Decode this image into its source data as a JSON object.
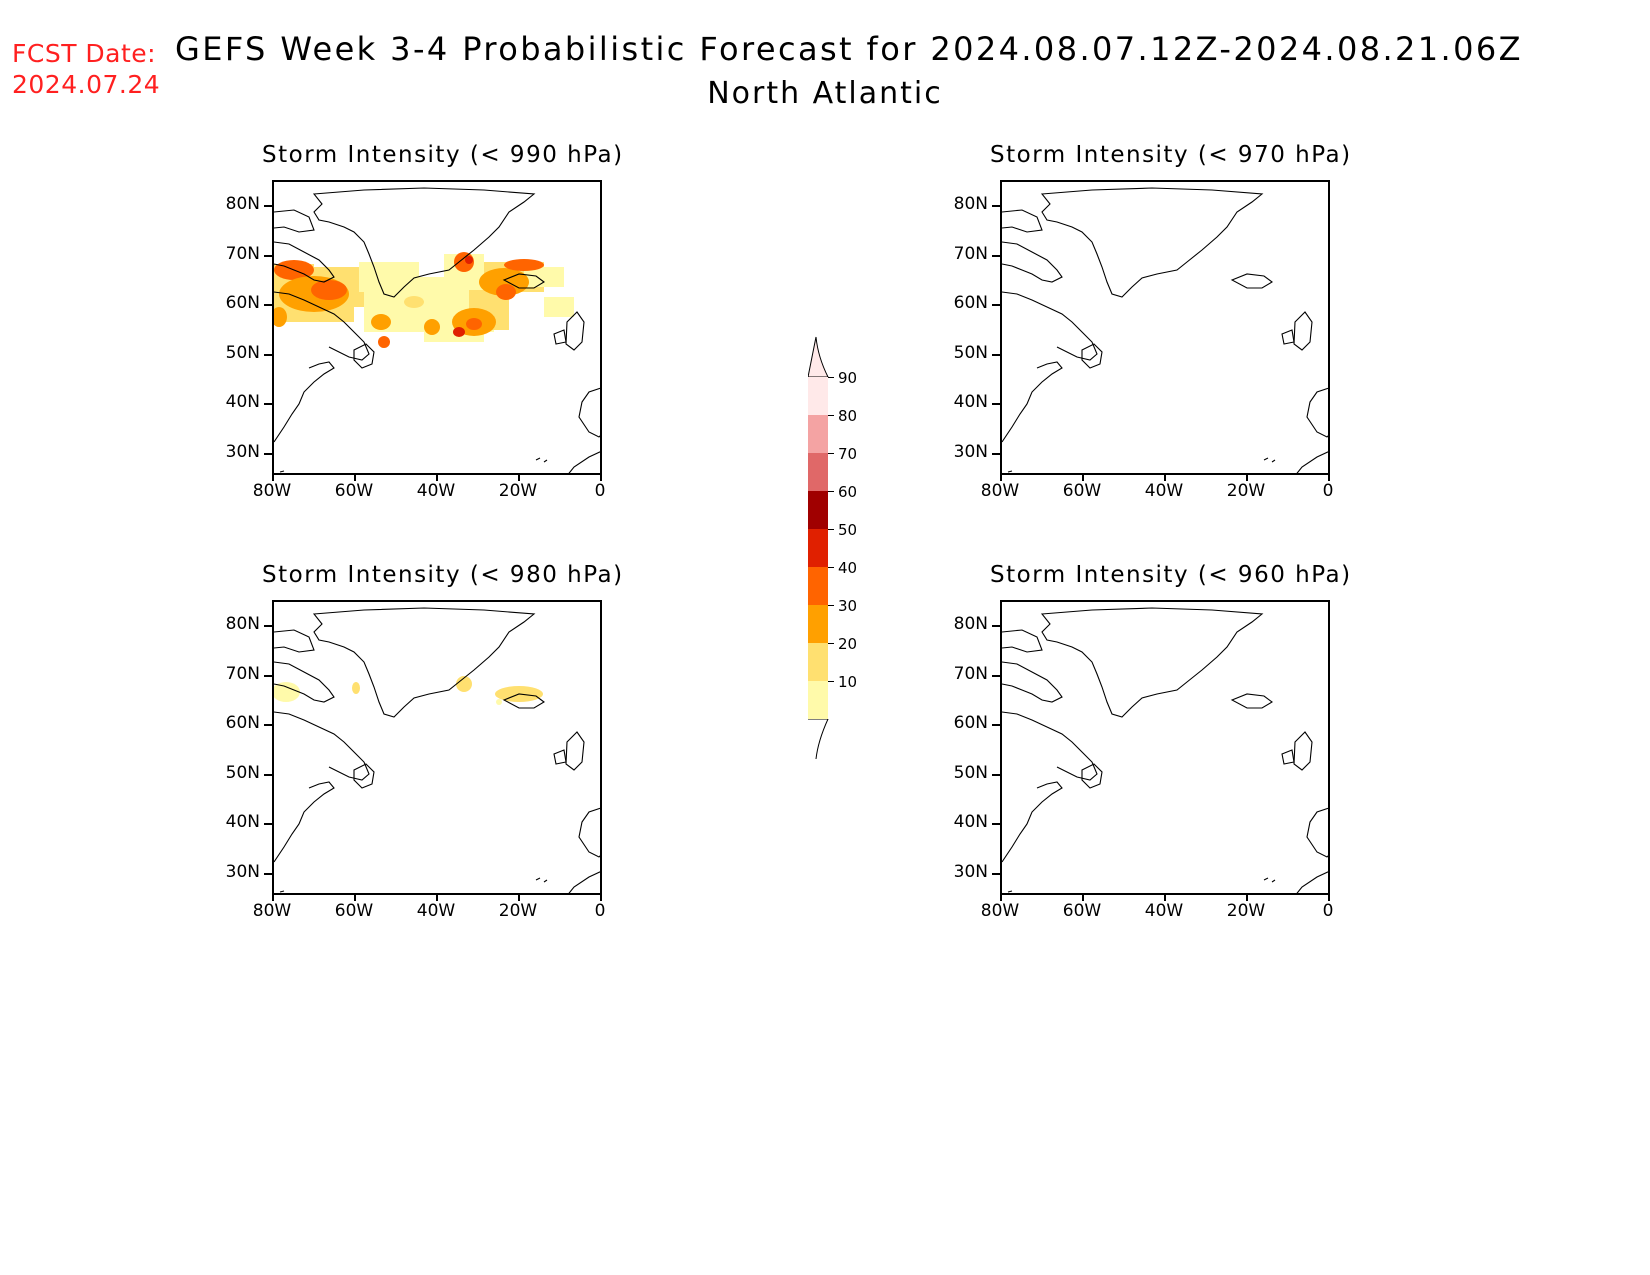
{
  "header": {
    "fcst_label": "FCST Date:",
    "fcst_date": "2024.07.24",
    "title": "GEFS Week 3-4 Probabilistic Forecast for 2024.08.07.12Z-2024.08.21.06Z",
    "subtitle": "North Atlantic"
  },
  "axes": {
    "lat_labels": [
      "80N",
      "70N",
      "60N",
      "50N",
      "40N",
      "30N"
    ],
    "lon_labels": [
      "80W",
      "60W",
      "40W",
      "20W",
      "0"
    ]
  },
  "panels": [
    {
      "title": "Storm Intensity (< 990 hPa)",
      "coverage": "widespread"
    },
    {
      "title": "Storm Intensity (< 970 hPa)",
      "coverage": "none"
    },
    {
      "title": "Storm Intensity (< 980 hPa)",
      "coverage": "sparse"
    },
    {
      "title": "Storm Intensity (< 960 hPa)",
      "coverage": "none"
    }
  ],
  "colorbar": {
    "levels": [
      "90",
      "80",
      "70",
      "60",
      "50",
      "40",
      "30",
      "20",
      "10"
    ],
    "colors": [
      "#ffe9e9",
      "#f4a3a3",
      "#e06868",
      "#a00000",
      "#e02000",
      "#ff6400",
      "#ffa000",
      "#ffe070",
      "#fffaaa"
    ]
  }
}
